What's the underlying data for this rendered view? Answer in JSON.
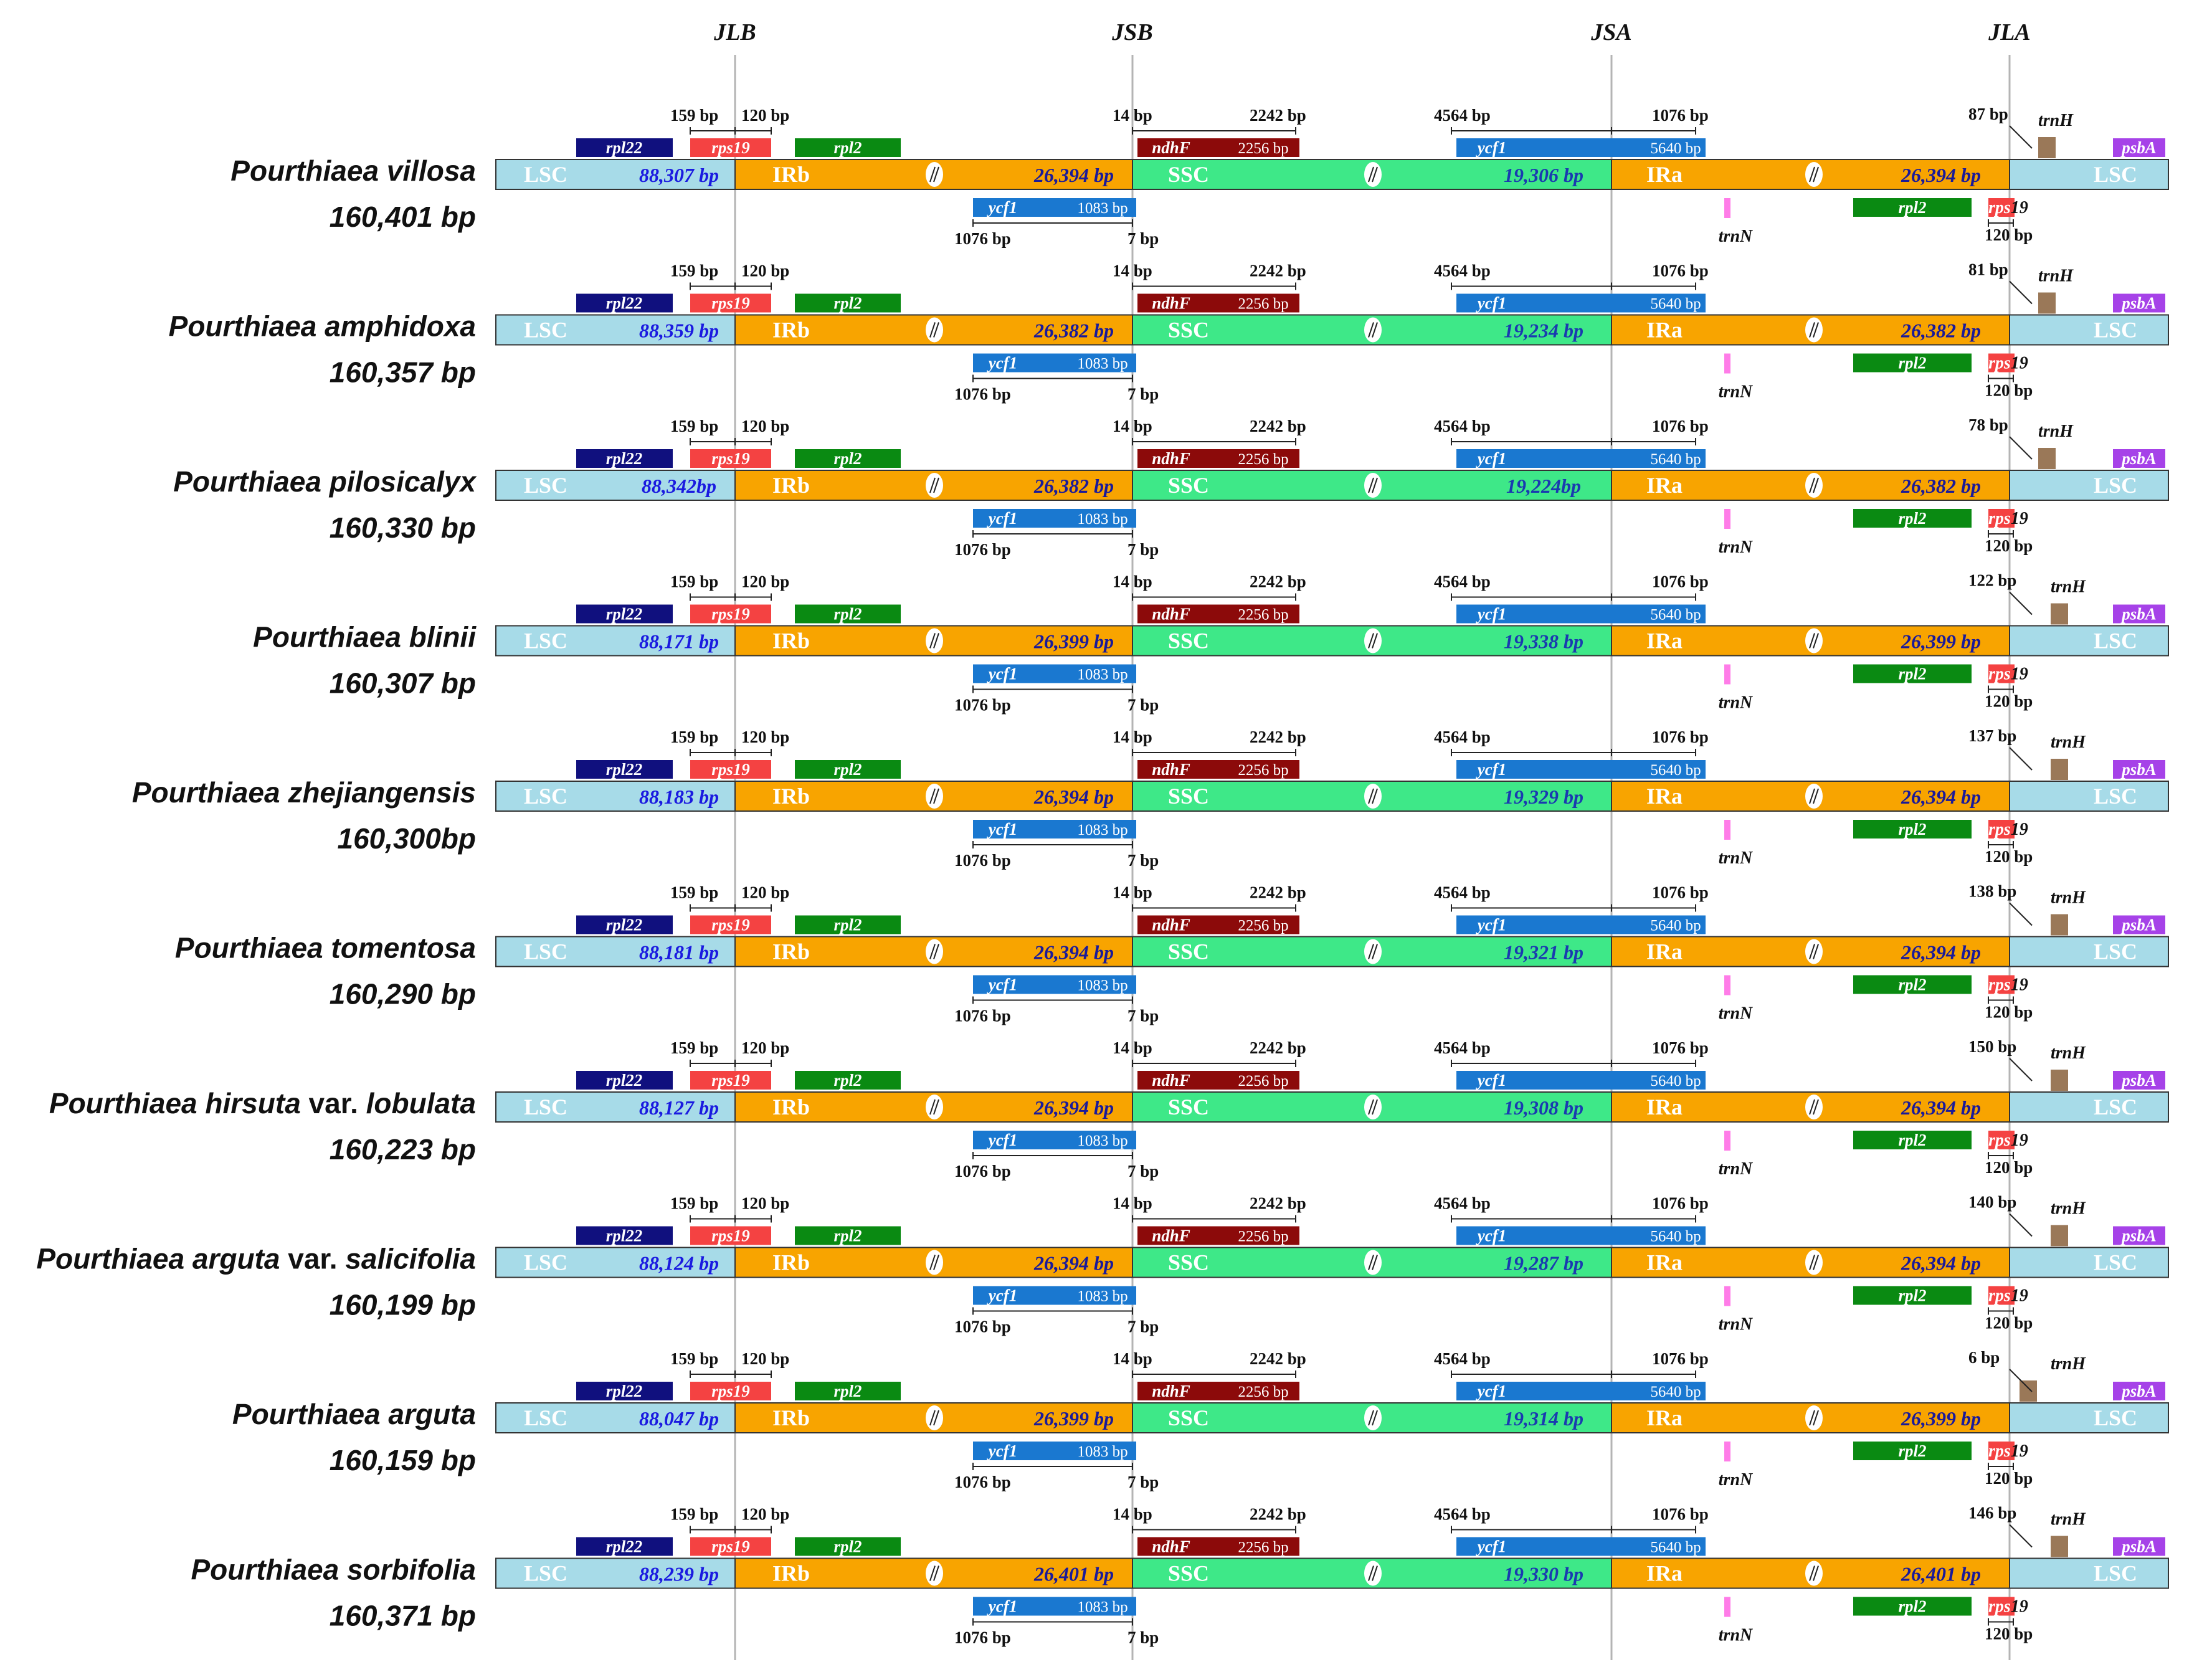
{
  "junctions": [
    "JLB",
    "JSB",
    "JSA",
    "JLA"
  ],
  "colors": {
    "LSC": "#a7dbe8",
    "IR": "#f8a400",
    "SSC": "#3ee888",
    "rpl22": "#10107e",
    "rps19": "#f44242",
    "rpl2": "#0a8a12",
    "ndhF": "#8c0a0a",
    "ycf1": "#1a78d0",
    "trnN": "#ff7ce8",
    "trnH": "#9a7858",
    "psbA": "#a642e8",
    "len_lsc": "#1a1ae0",
    "len_ir": "#1a1a9a",
    "len_ssc": "#1a3ab0"
  },
  "regions": {
    "lsc": "LSC",
    "irb": "IRb",
    "ssc": "SSC",
    "ira": "IRa"
  },
  "genes": {
    "rpl22": "rpl22",
    "rps19": "rps19",
    "rpl2": "rpl2",
    "ndhF": "ndhF",
    "ycf1": "ycf1",
    "trnN": "trnN",
    "trnH": "trnH",
    "psbA": "psbA",
    "rps_part": "rps",
    "rps_rest": "19"
  },
  "constants": {
    "d_159": "159 bp",
    "d_120": "120 bp",
    "d_14": "14 bp",
    "d_2242": "2242 bp",
    "d_4564": "4564 bp",
    "d_1076": "1076 bp",
    "ndhF_len": "2256 bp",
    "ycf1_len": "5640 bp",
    "ycf1_ir_len": "1083 bp",
    "d_7": "7 bp",
    "d_120_bottom": "120 bp"
  },
  "species": [
    {
      "name": "Pourthiaea villosa",
      "total": "160,401 bp",
      "lsc": "88,307 bp",
      "irb": "26,394 bp",
      "ssc": "19,306 bp",
      "ira": "26,394 bp",
      "trnH": "87 bp"
    },
    {
      "name": "Pourthiaea amphidoxa",
      "total": "160,357 bp",
      "lsc": "88,359 bp",
      "irb": "26,382 bp",
      "ssc": "19,234 bp",
      "ira": "26,382 bp",
      "trnH": "81 bp"
    },
    {
      "name": "Pourthiaea pilosicalyx",
      "total": "160,330 bp",
      "lsc": "88,342bp",
      "irb": "26,382 bp",
      "ssc": "19,224bp",
      "ira": "26,382 bp",
      "trnH": "78 bp"
    },
    {
      "name": "Pourthiaea blinii",
      "total": "160,307 bp",
      "lsc": "88,171 bp",
      "irb": "26,399 bp",
      "ssc": "19,338 bp",
      "ira": "26,399 bp",
      "trnH": "122 bp"
    },
    {
      "name": "Pourthiaea zhejiangensis",
      "total": "160,300bp",
      "lsc": "88,183 bp",
      "irb": "26,394 bp",
      "ssc": "19,329 bp",
      "ira": "26,394 bp",
      "trnH": "137 bp"
    },
    {
      "name": "Pourthiaea tomentosa",
      "total": "160,290 bp",
      "lsc": "88,181 bp",
      "irb": "26,394 bp",
      "ssc": "19,321 bp",
      "ira": "26,394 bp",
      "trnH": "138 bp"
    },
    {
      "name": "Pourthiaea  hirsuta",
      "name_var": " var. ",
      "name_tail": "lobulata",
      "total": "160,223 bp",
      "lsc": "88,127 bp",
      "irb": "26,394 bp",
      "ssc": "19,308 bp",
      "ira": "26,394 bp",
      "trnH": "150 bp"
    },
    {
      "name": "Pourthiaea arguta",
      "name_var": " var. ",
      "name_tail": "salicifolia",
      "total": "160,199 bp",
      "lsc": "88,124 bp",
      "irb": "26,394 bp",
      "ssc": "19,287 bp",
      "ira": "26,394 bp",
      "trnH": "140 bp"
    },
    {
      "name": "Pourthiaea arguta",
      "total": "160,159 bp",
      "lsc": "88,047 bp",
      "irb": "26,399 bp",
      "ssc": "19,314 bp",
      "ira": "26,399 bp",
      "trnH": "6 bp"
    },
    {
      "name": "Pourthiaea  sorbifolia",
      "total": "160,371 bp",
      "lsc": "88,239 bp",
      "irb": "26,401 bp",
      "ssc": "19,330 bp",
      "ira": "26,401 bp",
      "trnH": "146 bp"
    }
  ]
}
